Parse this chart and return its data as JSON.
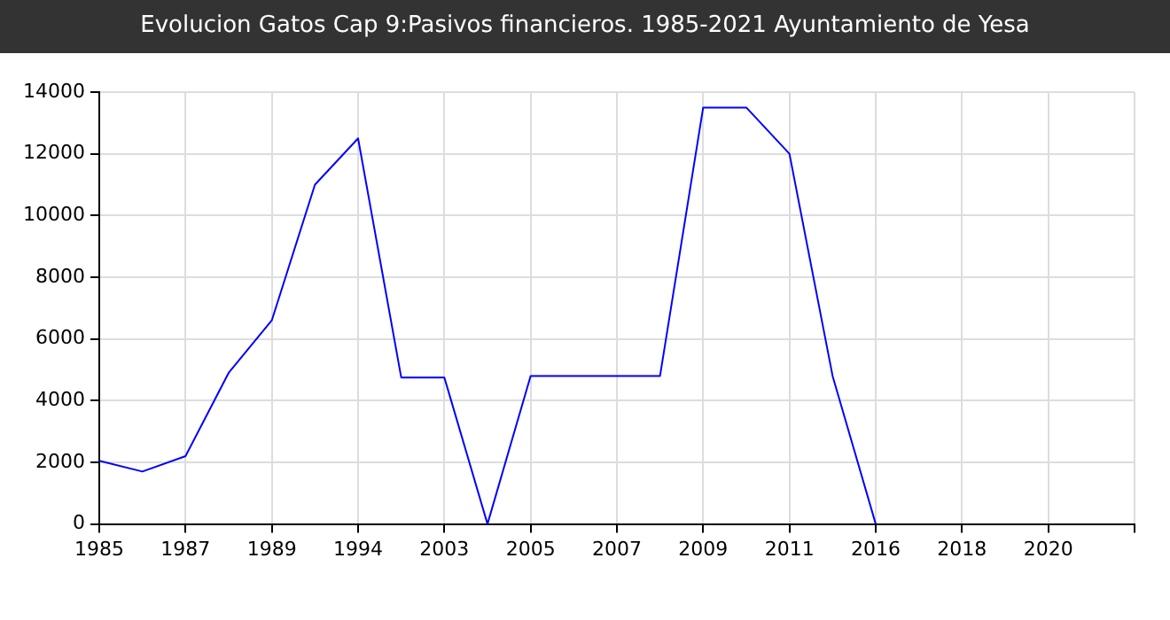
{
  "chart_data": {
    "type": "line",
    "title": "Evolucion Gatos Cap 9:Pasivos financieros. 1985-2021 Ayuntamiento de Yesa",
    "categories": [
      "1985",
      null,
      "1987",
      null,
      "1989",
      null,
      "1994",
      null,
      "2003",
      null,
      "2005",
      null,
      "2007",
      null,
      "2009",
      null,
      "2011",
      null,
      "2016",
      null,
      "2018",
      null,
      "2020",
      null,
      null
    ],
    "series": [
      {
        "color": "#0000ff",
        "values": [
          2050,
          1700,
          2200,
          4900,
          6600,
          11000,
          12500,
          4750,
          4750,
          0,
          4800,
          4800,
          4800,
          4800,
          13500,
          13500,
          12000,
          4800,
          0,
          null,
          null,
          null,
          null,
          null,
          null
        ]
      }
    ],
    "ylim": [
      0,
      14000
    ],
    "yticks": [
      0,
      2000,
      4000,
      6000,
      8000,
      10000,
      12000,
      14000
    ],
    "grid": true,
    "legend": false,
    "marker": "none",
    "line_style": "solid"
  }
}
